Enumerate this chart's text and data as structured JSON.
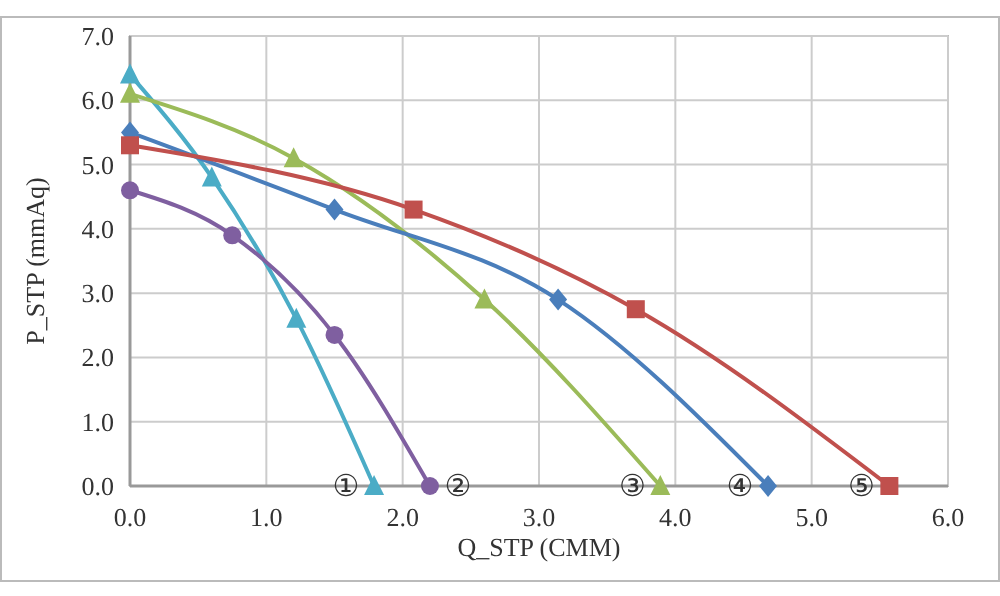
{
  "chart_data": {
    "type": "line",
    "xlabel": "Q_STP (CMM)",
    "ylabel": "P_STP (mmAq)",
    "xlim": [
      0,
      6
    ],
    "xticks": [
      {
        "value": 0,
        "label": "0.0"
      },
      {
        "value": 1,
        "label": "1.0"
      },
      {
        "value": 2,
        "label": "2.0"
      },
      {
        "value": 3,
        "label": "3.0"
      },
      {
        "value": 4,
        "label": "4.0"
      },
      {
        "value": 5,
        "label": "5.0"
      },
      {
        "value": 6,
        "label": "6.0"
      }
    ],
    "ylim": [
      0,
      7
    ],
    "yticks": [
      {
        "value": 0,
        "label": "0.0"
      },
      {
        "value": 1,
        "label": "1.0"
      },
      {
        "value": 2,
        "label": "2.0"
      },
      {
        "value": 3,
        "label": "3.0"
      },
      {
        "value": 4,
        "label": "4.0"
      },
      {
        "value": 5,
        "label": "5.0"
      },
      {
        "value": 6,
        "label": "6.0"
      },
      {
        "value": 7,
        "label": "7.0"
      }
    ],
    "grid": true,
    "line_style": "solid",
    "series": [
      {
        "name": "①",
        "color": "#4bacc6",
        "marker": "triangle",
        "x": [
          0,
          0.6,
          1.22,
          1.79
        ],
        "values": [
          6.4,
          4.8,
          2.6,
          0
        ]
      },
      {
        "name": "②",
        "color": "#7f5fa0",
        "marker": "circle",
        "x": [
          0,
          0.75,
          1.5,
          2.2
        ],
        "values": [
          4.6,
          3.9,
          2.35,
          0
        ]
      },
      {
        "name": "③",
        "color": "#9bbb59",
        "marker": "triangle",
        "x": [
          0,
          1.2,
          2.6,
          3.89
        ],
        "values": [
          6.1,
          5.1,
          2.9,
          0
        ]
      },
      {
        "name": "④",
        "color": "#4a7ebb",
        "marker": "diamond",
        "x": [
          0,
          1.5,
          3.14,
          4.68
        ],
        "values": [
          5.5,
          4.3,
          2.9,
          0
        ]
      },
      {
        "name": "⑤",
        "color": "#c0504d",
        "marker": "square",
        "x": [
          0,
          2.08,
          3.71,
          5.57
        ],
        "values": [
          5.3,
          4.3,
          2.75,
          0
        ]
      }
    ]
  }
}
